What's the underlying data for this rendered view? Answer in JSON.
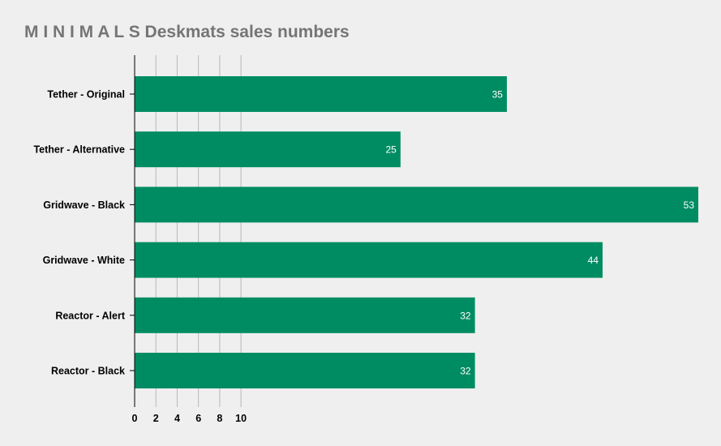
{
  "chart_data": {
    "type": "bar",
    "orientation": "horizontal",
    "title": "M I N I M A L S Deskmats sales numbers",
    "categories": [
      "Tether - Original",
      "Tether - Alternative",
      "Gridwave - Black",
      "Gridwave - White",
      "Reactor - Alert",
      "Reactor - Black"
    ],
    "values": [
      35,
      25,
      53,
      44,
      32,
      32
    ],
    "x_ticks": [
      0,
      2,
      4,
      6,
      8,
      10
    ],
    "xlim": [
      0,
      53
    ],
    "xlabel": "",
    "ylabel": "",
    "grid": true,
    "data_labels": true,
    "legend": "none",
    "colors": {
      "bar": "#008c62",
      "grid": "#b8b8b8",
      "axis": "#000000",
      "title": "#757575",
      "background": "#efefef",
      "data_label": "#ffffff"
    }
  }
}
